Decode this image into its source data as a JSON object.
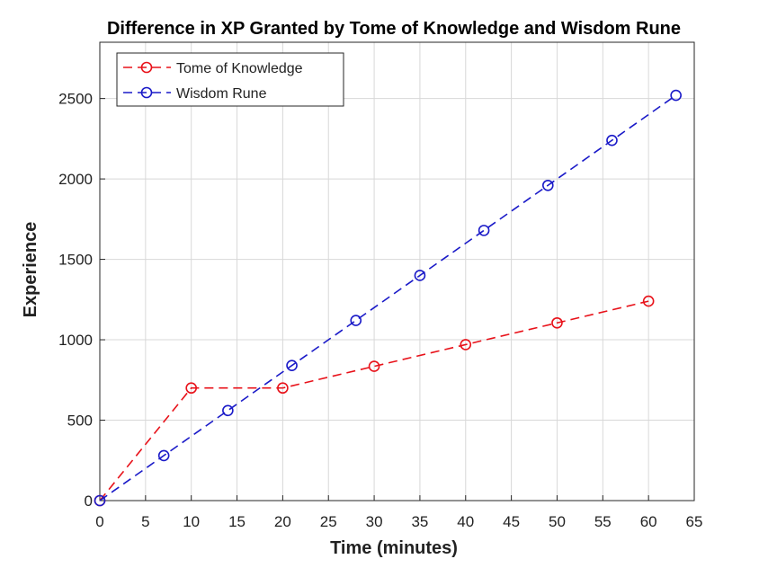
{
  "chart_data": {
    "type": "line",
    "title": "Difference in XP Granted by Tome of Knowledge and Wisdom Rune",
    "xlabel": "Time (minutes)",
    "ylabel": "Experience",
    "xlim": [
      0,
      65
    ],
    "ylim": [
      0,
      2850
    ],
    "xticks": [
      0,
      5,
      10,
      15,
      20,
      25,
      30,
      35,
      40,
      45,
      50,
      55,
      60,
      65
    ],
    "yticks": [
      0,
      500,
      1000,
      1500,
      2000,
      2500
    ],
    "grid": true,
    "legend_position": "top-left",
    "series": [
      {
        "name": "Tome of Knowledge",
        "color": "#e8121a",
        "line_style": "dashed",
        "marker": "circle",
        "x": [
          0,
          10,
          20,
          30,
          40,
          50,
          60
        ],
        "y": [
          0,
          700,
          700,
          835,
          970,
          1105,
          1240
        ]
      },
      {
        "name": "Wisdom Rune",
        "color": "#1a1ac8",
        "line_style": "dashed",
        "marker": "circle",
        "x": [
          0,
          7,
          14,
          21,
          28,
          35,
          42,
          49,
          56,
          63
        ],
        "y": [
          0,
          280,
          560,
          840,
          1120,
          1400,
          1680,
          1960,
          2240,
          2520
        ]
      }
    ]
  }
}
